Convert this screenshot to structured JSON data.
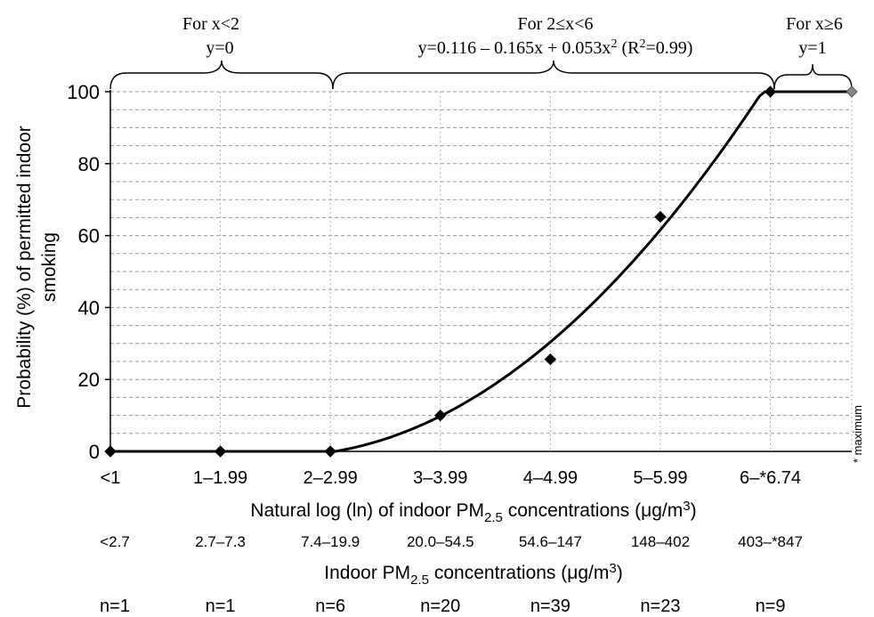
{
  "chart_data": {
    "type": "line",
    "ylabel": "Probability (%) of permitted indoor smoking",
    "xlabel": "Natural log (ln) of indoor PM2.5 concentrations (μg/m3)",
    "xlabel2": "Indoor PM2.5 concentrations (μg/m3)",
    "ylim": [
      0,
      100
    ],
    "xlim": [
      0,
      6.74
    ],
    "yticks": [
      0,
      20,
      40,
      60,
      80,
      100
    ],
    "grid": "horizontal dashed every 5%",
    "categories": [
      "<1",
      "1–1.99",
      "2–2.99",
      "3–3.99",
      "4–4.99",
      "5–5.99",
      "6–*6.74"
    ],
    "conc_labels": [
      "<2.7",
      "2.7–7.3",
      "7.4–19.9",
      "20.0–54.5",
      "54.6–147",
      "148–402",
      "403–*847"
    ],
    "n_labels": [
      "n=1",
      "n=1",
      "n=6",
      "n=20",
      "n=39",
      "n=23",
      "n=9"
    ],
    "series": [
      {
        "marker": "diamond",
        "points": [
          {
            "x": 0,
            "y": 0
          },
          {
            "x": 1,
            "y": 0
          },
          {
            "x": 2,
            "y": 0
          },
          {
            "x": 3,
            "y": 10
          },
          {
            "x": 4,
            "y": 25.6
          },
          {
            "x": 5,
            "y": 65.2
          },
          {
            "x": 6,
            "y": 100
          },
          {
            "x": 6.74,
            "y": 100
          }
        ]
      }
    ],
    "annotations": [
      {
        "text": "For x<2",
        "subtext": "y=0",
        "range": [
          0,
          2
        ]
      },
      {
        "text": "For 2≤x<6",
        "subtext": "y=0.116 – 0.165x + 0.053x² (R²=0.99)",
        "range": [
          2,
          6
        ]
      },
      {
        "text": "For x≥6",
        "subtext": "y=1",
        "range": [
          6,
          6.74
        ]
      }
    ],
    "max_note": "* maximum",
    "max_marker_color": "#888888",
    "colors": {
      "line": "#000000",
      "grid": "#9a9a9a",
      "axis": "#000000"
    }
  }
}
